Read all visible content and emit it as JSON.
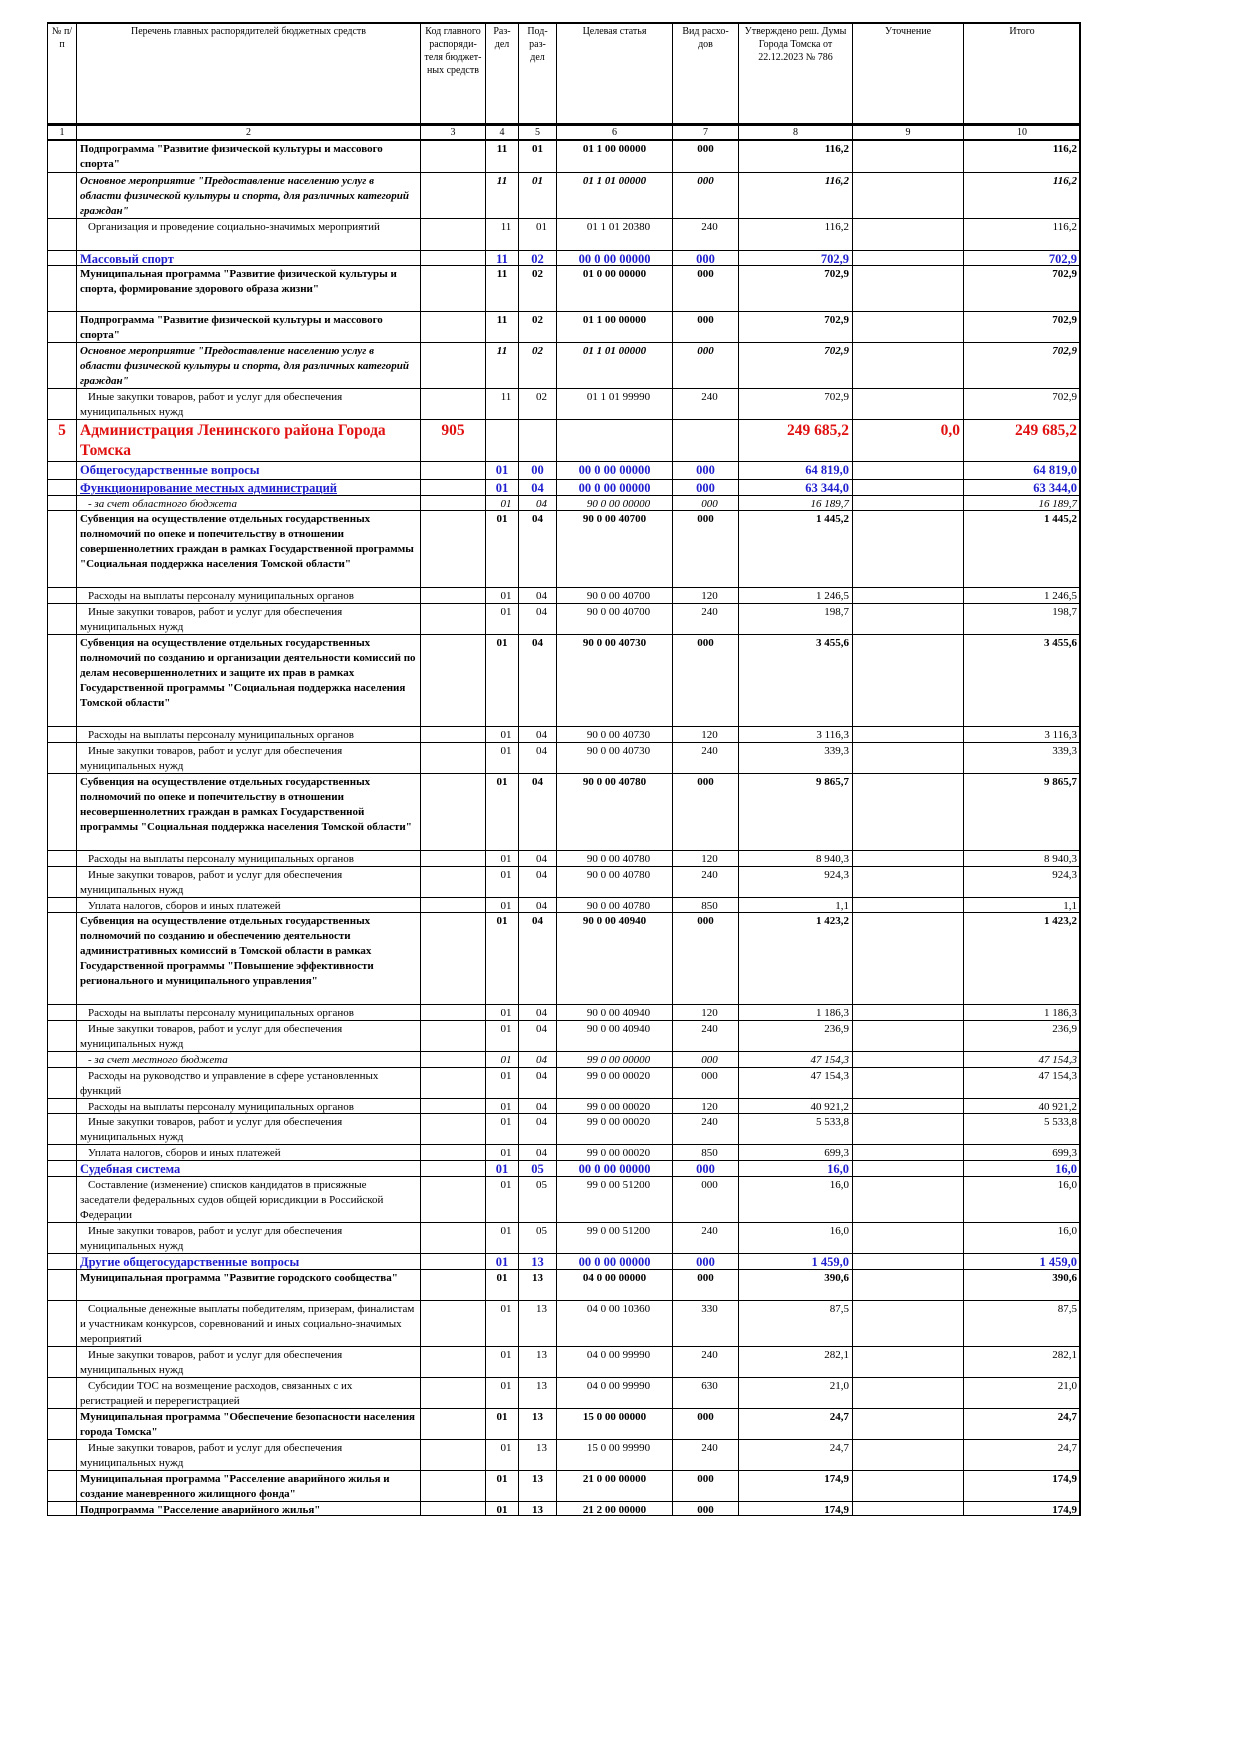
{
  "table": {
    "header": [
      "№ п/п",
      "Перечень главных распорядителей бюджетных средств",
      "Код главного распоряди-теля бюджет-ных средств",
      "Раз-дел",
      "Под-раз-дел",
      "Целевая статья",
      "Вид расхо-дов",
      "Утверждено реш. Думы Города Томска от 22.12.2023 № 786",
      "Уточнение",
      "Итого"
    ],
    "column_numbers": [
      1,
      2,
      3,
      4,
      5,
      6,
      7,
      8,
      9,
      10
    ],
    "rows": [
      [
        null,
        "Подпрограмма \"Развитие физической культуры и массового спорта\"",
        null,
        "11",
        "01",
        "01 1 00 00000",
        "000",
        "116,2",
        null,
        "116,2"
      ],
      [
        null,
        "Основное мероприятие \"Предоставление населению услуг в области физической культуры и спорта, для различных категорий граждан\"",
        null,
        "11",
        "01",
        "01 1 01 00000",
        "000",
        "116,2",
        null,
        "116,2"
      ],
      [
        null,
        "Организация и проведение социально-значимых мероприятий",
        null,
        "11",
        "01",
        "01 1 01 20380",
        "240",
        "116,2",
        null,
        "116,2"
      ],
      [
        null,
        "Массовый спорт",
        null,
        "11",
        "02",
        "00 0 00 00000",
        "000",
        "702,9",
        null,
        "702,9"
      ],
      [
        null,
        "Муниципальная программа \"Развитие физической культуры и спорта, формирование здорового образа жизни\"",
        null,
        "11",
        "02",
        "01 0 00 00000",
        "000",
        "702,9",
        null,
        "702,9"
      ],
      [
        null,
        "Подпрограмма \"Развитие физической культуры и массового спорта\"",
        null,
        "11",
        "02",
        "01 1 00 00000",
        "000",
        "702,9",
        null,
        "702,9"
      ],
      [
        null,
        "Основное мероприятие \"Предоставление населению услуг в области физической культуры и спорта, для различных категорий граждан\"",
        null,
        "11",
        "02",
        "01 1 01 00000",
        "000",
        "702,9",
        null,
        "702,9"
      ],
      [
        null,
        "Иные закупки товаров, работ и услуг для обеспечения муниципальных нужд",
        null,
        "11",
        "02",
        "01 1 01 99990",
        "240",
        "702,9",
        null,
        "702,9"
      ],
      [
        "5",
        "Администрация Ленинского района Города Томска",
        "905",
        null,
        null,
        null,
        null,
        "249 685,2",
        "0,0",
        "249 685,2"
      ],
      [
        null,
        "Общегосударственные вопросы",
        null,
        "01",
        "00",
        "00 0 00 00000",
        "000",
        "64 819,0",
        null,
        "64 819,0"
      ],
      [
        null,
        "Функционирование местных администраций",
        null,
        "01",
        "04",
        "00 0 00 00000",
        "000",
        "63 344,0",
        null,
        "63 344,0"
      ],
      [
        null,
        "- за счет областного бюджета",
        null,
        "01",
        "04",
        "90 0 00 00000",
        "000",
        "16 189,7",
        null,
        "16 189,7"
      ],
      [
        null,
        "Субвенция на осуществление отдельных государственных полномочий по опеке и попечительству в отношении совершеннолетних граждан в рамках Государственной программы \"Социальная поддержка населения Томской области\"",
        null,
        "01",
        "04",
        "90 0 00 40700",
        "000",
        "1 445,2",
        null,
        "1 445,2"
      ],
      [
        null,
        "Расходы на выплаты персоналу муниципальных органов",
        null,
        "01",
        "04",
        "90 0 00 40700",
        "120",
        "1 246,5",
        null,
        "1 246,5"
      ],
      [
        null,
        "Иные закупки товаров, работ и услуг для обеспечения муниципальных нужд",
        null,
        "01",
        "04",
        "90 0 00 40700",
        "240",
        "198,7",
        null,
        "198,7"
      ],
      [
        null,
        "Субвенция на осуществление отдельных государственных полномочий по созданию и организации деятельности комиссий по делам несовершеннолетних и защите их прав в рамках Государственной программы \"Социальная поддержка населения Томской области\"",
        null,
        "01",
        "04",
        "90 0 00 40730",
        "000",
        "3 455,6",
        null,
        "3 455,6"
      ],
      [
        null,
        "Расходы на выплаты персоналу муниципальных органов",
        null,
        "01",
        "04",
        "90 0 00 40730",
        "120",
        "3 116,3",
        null,
        "3 116,3"
      ],
      [
        null,
        "Иные закупки товаров, работ и услуг для обеспечения муниципальных нужд",
        null,
        "01",
        "04",
        "90 0 00 40730",
        "240",
        "339,3",
        null,
        "339,3"
      ],
      [
        null,
        "Субвенция на осуществление отдельных государственных полномочий по опеке и попечительству в отношении несовершеннолетних граждан в рамках Государственной программы \"Социальная поддержка населения Томской области\"",
        null,
        "01",
        "04",
        "90 0 00 40780",
        "000",
        "9 865,7",
        null,
        "9 865,7"
      ],
      [
        null,
        "Расходы на выплаты персоналу муниципальных органов",
        null,
        "01",
        "04",
        "90 0 00 40780",
        "120",
        "8 940,3",
        null,
        "8 940,3"
      ],
      [
        null,
        "Иные закупки товаров, работ и услуг для обеспечения муниципальных нужд",
        null,
        "01",
        "04",
        "90 0 00 40780",
        "240",
        "924,3",
        null,
        "924,3"
      ],
      [
        null,
        "Уплата налогов, сборов и иных платежей",
        null,
        "01",
        "04",
        "90 0 00 40780",
        "850",
        "1,1",
        null,
        "1,1"
      ],
      [
        null,
        "Субвенция на осуществление отдельных государственных полномочий по созданию и обеспечению деятельности административных комиссий в Томской области в рамках Государственной программы \"Повышение эффективности регионального и муниципального управления\"",
        null,
        "01",
        "04",
        "90 0 00 40940",
        "000",
        "1 423,2",
        null,
        "1 423,2"
      ],
      [
        null,
        "Расходы на выплаты персоналу муниципальных органов",
        null,
        "01",
        "04",
        "90 0 00 40940",
        "120",
        "1 186,3",
        null,
        "1 186,3"
      ],
      [
        null,
        "Иные закупки товаров, работ и услуг для обеспечения муниципальных нужд",
        null,
        "01",
        "04",
        "90 0 00 40940",
        "240",
        "236,9",
        null,
        "236,9"
      ],
      [
        null,
        "- за счет местного бюджета",
        null,
        "01",
        "04",
        "99 0 00 00000",
        "000",
        "47 154,3",
        null,
        "47 154,3"
      ],
      [
        null,
        "Расходы на руководство и управление в сфере установленных функций",
        null,
        "01",
        "04",
        "99 0 00 00020",
        "000",
        "47 154,3",
        null,
        "47 154,3"
      ],
      [
        null,
        "Расходы на выплаты персоналу муниципальных органов",
        null,
        "01",
        "04",
        "99 0 00 00020",
        "120",
        "40 921,2",
        null,
        "40 921,2"
      ],
      [
        null,
        "Иные закупки товаров, работ и услуг для обеспечения муниципальных нужд",
        null,
        "01",
        "04",
        "99 0 00 00020",
        "240",
        "5 533,8",
        null,
        "5 533,8"
      ],
      [
        null,
        "Уплата налогов, сборов и иных платежей",
        null,
        "01",
        "04",
        "99 0 00 00020",
        "850",
        "699,3",
        null,
        "699,3"
      ],
      [
        null,
        "Судебная система",
        null,
        "01",
        "05",
        "00 0 00 00000",
        "000",
        "16,0",
        null,
        "16,0"
      ],
      [
        null,
        "Составление (изменение) списков кандидатов в присяжные заседатели федеральных судов общей юрисдикции в Российской Федерации",
        null,
        "01",
        "05",
        "99 0 00 51200",
        "000",
        "16,0",
        null,
        "16,0"
      ],
      [
        null,
        "Иные закупки товаров, работ и услуг для обеспечения муниципальных нужд",
        null,
        "01",
        "05",
        "99 0 00 51200",
        "240",
        "16,0",
        null,
        "16,0"
      ],
      [
        null,
        "Другие общегосударственные вопросы",
        null,
        "01",
        "13",
        "00 0 00 00000",
        "000",
        "1 459,0",
        null,
        "1 459,0"
      ],
      [
        null,
        "Муниципальная программа \"Развитие городского сообщества\"",
        null,
        "01",
        "13",
        "04 0 00 00000",
        "000",
        "390,6",
        null,
        "390,6"
      ],
      [
        null,
        "Социальные денежные выплаты победителям, призерам, финалистам и участникам конкурсов, соревнований и иных социально-значимых мероприятий",
        null,
        "01",
        "13",
        "04 0 00 10360",
        "330",
        "87,5",
        null,
        "87,5"
      ],
      [
        null,
        "Иные закупки товаров, работ и услуг для обеспечения муниципальных нужд",
        null,
        "01",
        "13",
        "04 0 00 99990",
        "240",
        "282,1",
        null,
        "282,1"
      ],
      [
        null,
        "Субсидии ТОС на возмещение расходов, связанных с их регистрацией и перерегистрацией",
        null,
        "01",
        "13",
        "04 0 00 99990",
        "630",
        "21,0",
        null,
        "21,0"
      ],
      [
        null,
        "Муниципальная программа \"Обеспечение безопасности населения города Томска\"",
        null,
        "01",
        "13",
        "15 0 00 00000",
        "000",
        "24,7",
        null,
        "24,7"
      ],
      [
        null,
        "Иные закупки товаров, работ и услуг для обеспечения муниципальных нужд",
        null,
        "01",
        "13",
        "15 0 00 99990",
        "240",
        "24,7",
        null,
        "24,7"
      ],
      [
        null,
        "Муниципальная программа \"Расселение аварийного жилья и создание маневренного жилищного фонда\"",
        null,
        "01",
        "13",
        "21 0 00 00000",
        "000",
        "174,9",
        null,
        "174,9"
      ],
      [
        null,
        "Подпрограмма \"Расселение аварийного жилья\"",
        null,
        "01",
        "13",
        "21 2 00 00000",
        "000",
        "174,9",
        null,
        "174,9"
      ]
    ]
  }
}
